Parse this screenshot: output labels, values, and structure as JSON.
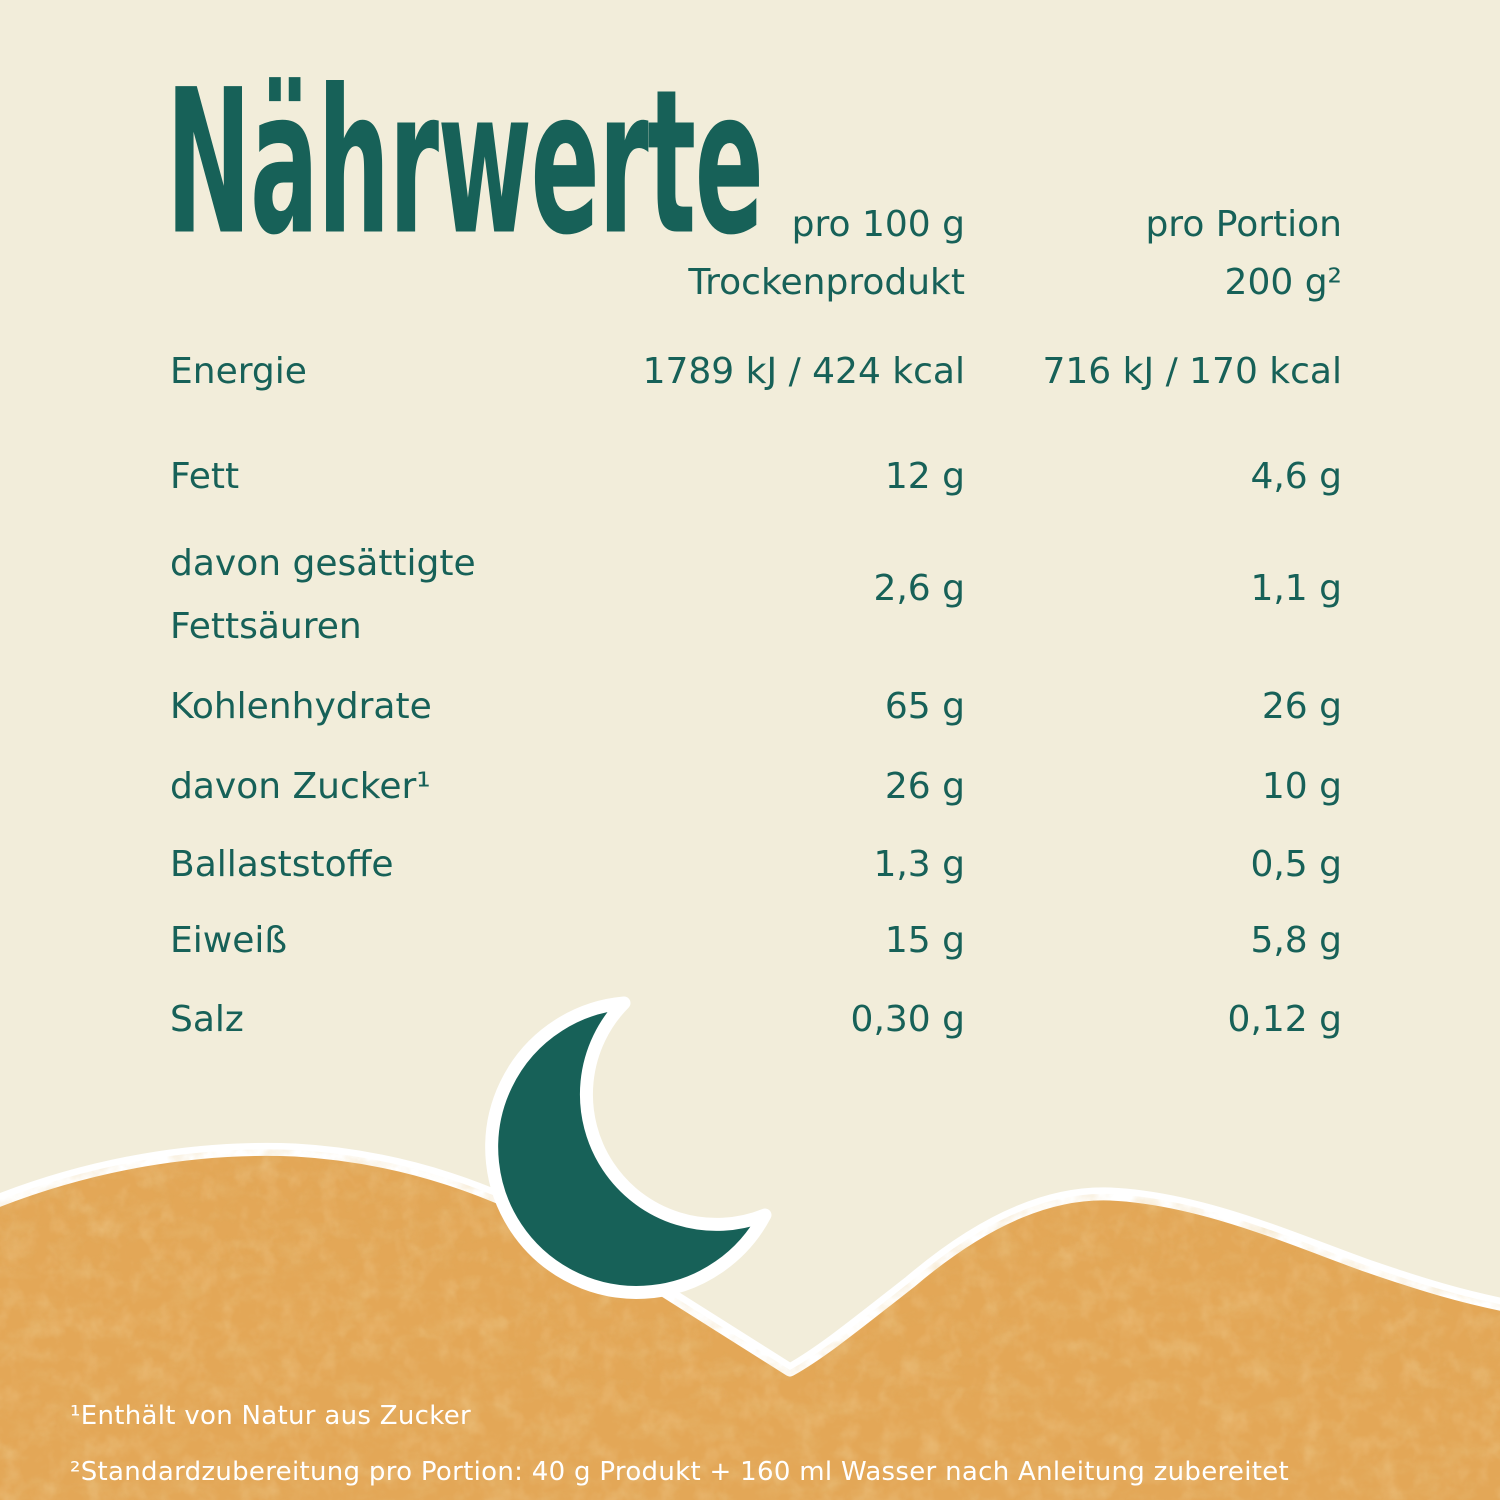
{
  "title": "Nährwerte",
  "table": {
    "column_headers": [
      {
        "line1": "pro 100 g",
        "line2": "Trockenprodukt"
      },
      {
        "line1": "pro Portion",
        "line2": "200 g²"
      }
    ],
    "rows": [
      {
        "label": "Energie",
        "per_100g": "1789 kJ / 424 kcal",
        "per_portion": "716 kJ / 170 kcal"
      },
      {
        "label": "Fett",
        "per_100g": "12 g",
        "per_portion": "4,6 g"
      },
      {
        "label": "davon gesättigte\nFettsäuren",
        "per_100g": "2,6 g",
        "per_portion": "1,1 g"
      },
      {
        "label": "Kohlenhydrate",
        "per_100g": "65 g",
        "per_portion": "26 g"
      },
      {
        "label": "davon Zucker¹",
        "per_100g": "26 g",
        "per_portion": "10 g"
      },
      {
        "label": "Ballaststoffe",
        "per_100g": "1,3 g",
        "per_portion": "0,5 g"
      },
      {
        "label": "Eiweiß",
        "per_100g": "15 g",
        "per_portion": "5,8 g"
      },
      {
        "label": "Salz",
        "per_100g": "0,30 g",
        "per_portion": "0,12 g"
      }
    ]
  },
  "footnotes": [
    "¹Enthält von Natur aus Zucker",
    "²Standardzubereitung pro Portion: 40 g Produkt + 160 ml Wasser nach Anleitung zubereitet"
  ],
  "icons": {
    "moon": "crescent-moon"
  },
  "colors": {
    "text_teal": "#176158",
    "background_cream": "#f2edda",
    "sand_orange": "#e3a757",
    "outline_white": "#ffffff"
  }
}
